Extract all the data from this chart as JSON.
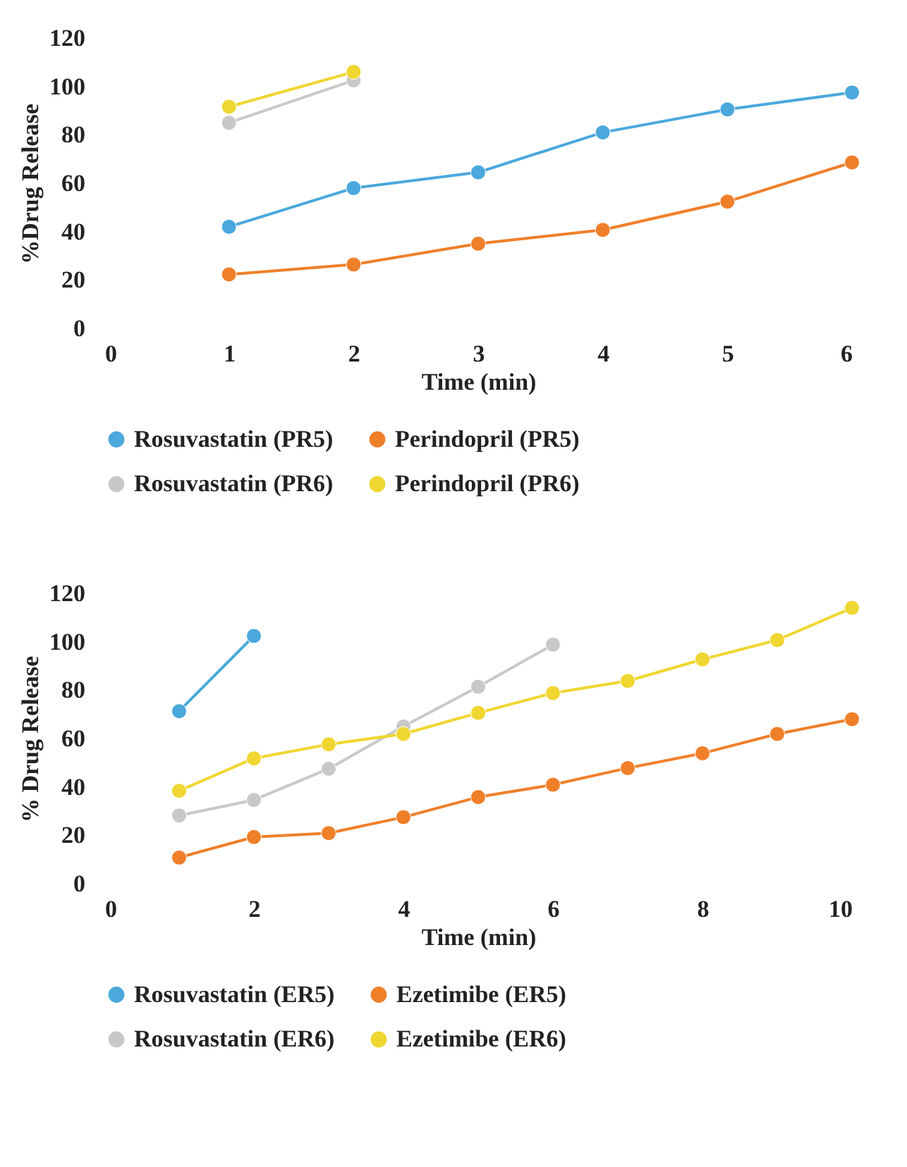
{
  "chart_data": [
    {
      "type": "line",
      "xlabel": "Time (min)",
      "ylabel": "%Drug Release",
      "xlim": [
        0,
        6
      ],
      "xticks": [
        0,
        1,
        2,
        3,
        4,
        5,
        6
      ],
      "ylim": [
        0,
        120
      ],
      "yticks": [
        0,
        20,
        40,
        60,
        80,
        100,
        120
      ],
      "legend": "bottom",
      "marker": "circle",
      "line_style": "solid",
      "series": [
        {
          "name": "Rosuvastatin (PR5)",
          "color": "#4aa8dc",
          "x": [
            1,
            2,
            3,
            4,
            5,
            6
          ],
          "values": [
            42,
            58,
            64.5,
            81,
            90.5,
            97.5
          ]
        },
        {
          "name": "Perindopril (PR5)",
          "color": "#f07f2a",
          "x": [
            1,
            2,
            3,
            4,
            5,
            6
          ],
          "values": [
            22.3,
            26.4,
            35,
            40.7,
            52.4,
            68.6
          ]
        },
        {
          "name": "Rosuvastatin (PR6)",
          "color": "#c8c8c8",
          "x": [
            1,
            2
          ],
          "values": [
            85,
            102.5
          ]
        },
        {
          "name": "Perindopril (PR6)",
          "color": "#f0d630",
          "x": [
            1,
            2
          ],
          "values": [
            91.6,
            106
          ]
        }
      ]
    },
    {
      "type": "line",
      "xlabel": "Time (min)",
      "ylabel": "% Drug Release",
      "xlim": [
        0,
        10
      ],
      "xticks": [
        0,
        2,
        4,
        6,
        8,
        10
      ],
      "ylim": [
        0,
        120
      ],
      "yticks": [
        0,
        20,
        40,
        60,
        80,
        100,
        120
      ],
      "legend": "bottom",
      "marker": "circle",
      "line_style": "solid",
      "series": [
        {
          "name": "Rosuvastatin (ER5)",
          "color": "#4aa8dc",
          "x": [
            1,
            2
          ],
          "values": [
            71.3,
            102.4
          ]
        },
        {
          "name": "Ezetimibe (ER5)",
          "color": "#f07f2a",
          "x": [
            1,
            2,
            3,
            4,
            5,
            6,
            7,
            8,
            9,
            10
          ],
          "values": [
            10.8,
            19.3,
            20.9,
            27.5,
            35.8,
            40.9,
            47.8,
            53.9,
            61.9,
            68
          ]
        },
        {
          "name": "Rosuvastatin (ER6)",
          "color": "#c8c8c8",
          "x": [
            1,
            2,
            3,
            4,
            5,
            6
          ],
          "values": [
            28.2,
            34.6,
            47.5,
            65,
            81.4,
            98.8
          ]
        },
        {
          "name": "Ezetimibe (ER6)",
          "color": "#f0d630",
          "x": [
            1,
            2,
            3,
            4,
            5,
            6,
            7,
            8,
            9,
            10
          ],
          "values": [
            38.4,
            51.8,
            57.6,
            61.9,
            70.6,
            78.8,
            83.8,
            92.7,
            100.7,
            114
          ]
        }
      ]
    }
  ]
}
